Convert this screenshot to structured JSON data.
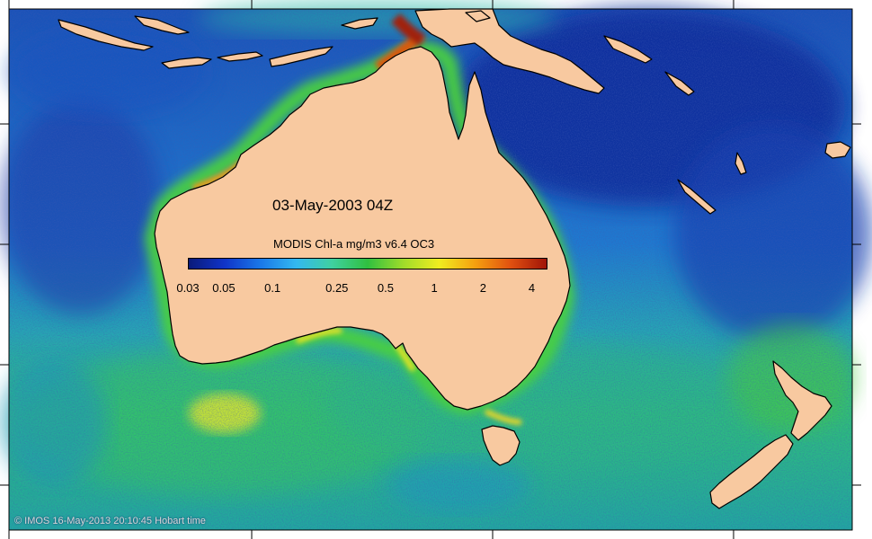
{
  "map": {
    "date_label": "03-May-2003 04Z",
    "colorbar": {
      "title": "MODIS Chl-a mg/m3 v6.4 OC3",
      "ticks": [
        "0.03",
        "0.05",
        "0.1",
        "0.25",
        "0.5",
        "1",
        "2",
        "4"
      ],
      "tick_values": [
        0.03,
        0.05,
        0.1,
        0.25,
        0.5,
        1,
        2,
        4
      ],
      "range": [
        0.03,
        5
      ],
      "scale": "log",
      "colors": [
        "#0a1a7a",
        "#1034c8",
        "#1a78e8",
        "#33b8f0",
        "#3fd0a0",
        "#30c040",
        "#a0dc2a",
        "#f0ec20",
        "#f5a010",
        "#e05010",
        "#a01408"
      ]
    },
    "credit": "© IMOS 16-May-2013 20:10:45 Hobart time",
    "colors": {
      "land": "#f8c9a0",
      "ocean_open": "#1c74c8",
      "ocean_deep": "#1a3aa0",
      "southern_ocean": "#2ec07a",
      "coastal_bloom": "#e8601a"
    }
  }
}
